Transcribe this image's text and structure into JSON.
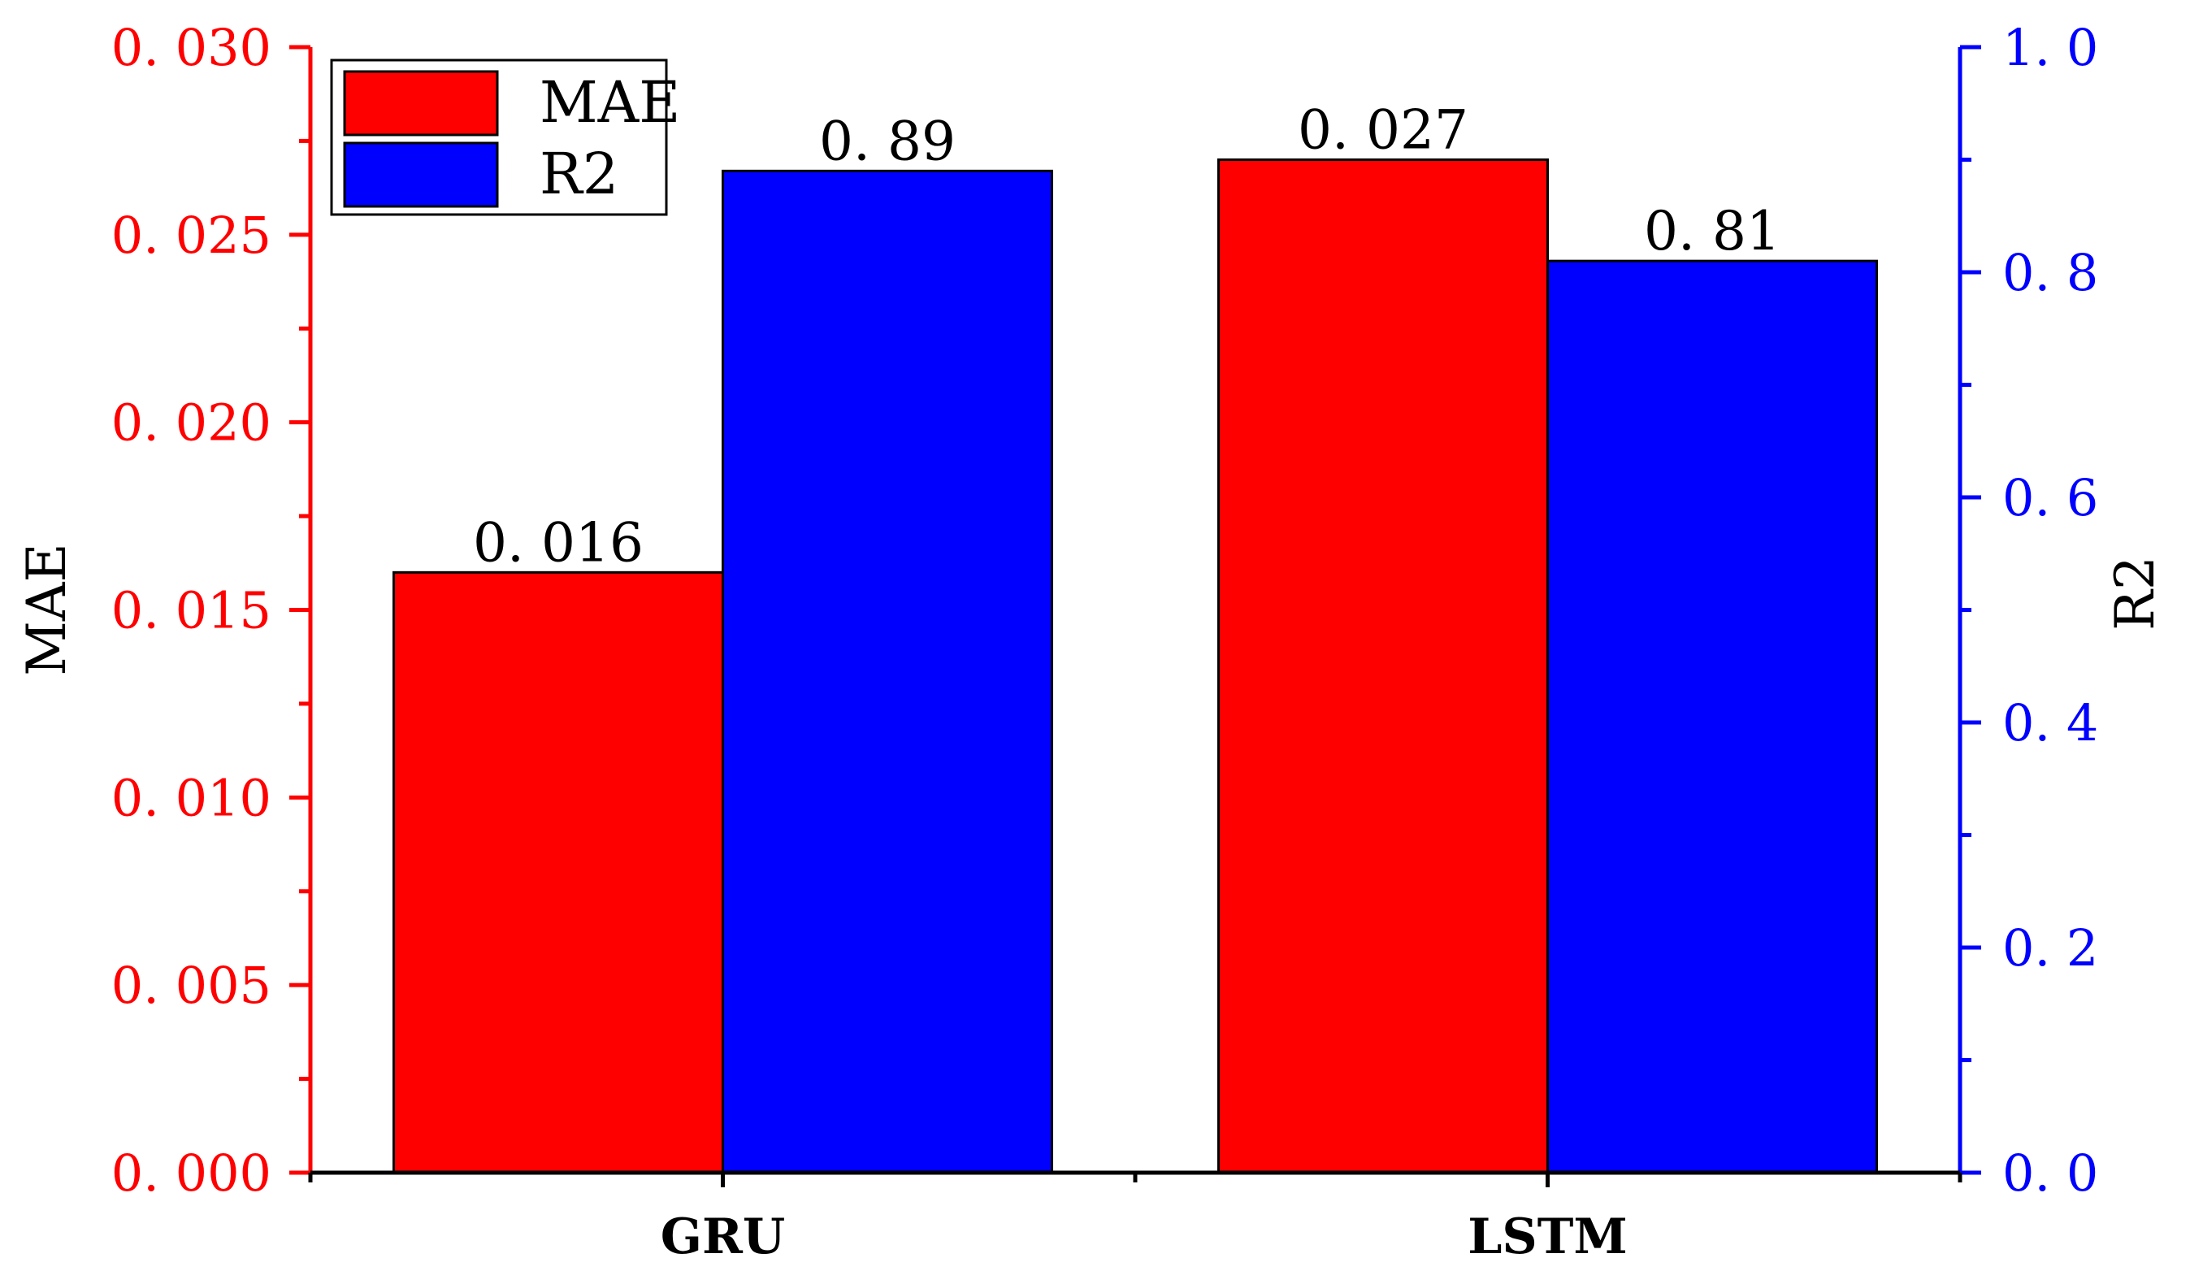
{
  "chart_data": {
    "type": "bar",
    "categories": [
      "GRU",
      "LSTM"
    ],
    "series": [
      {
        "name": "MAE",
        "axis": "left",
        "color": "#ff0000",
        "values": [
          0.016,
          0.027
        ],
        "value_labels": [
          "0. 016",
          "0. 027"
        ]
      },
      {
        "name": "R2",
        "axis": "right",
        "color": "#0000ff",
        "values": [
          0.89,
          0.81
        ],
        "value_labels": [
          "0. 89",
          "0. 81"
        ]
      }
    ],
    "y_left": {
      "label": "MAE",
      "range": [
        0,
        0.03
      ],
      "color": "#ff0000",
      "ticks": [
        0,
        0.005,
        0.01,
        0.015,
        0.02,
        0.025,
        0.03
      ],
      "tick_labels": [
        "0. 000",
        "0. 005",
        "0. 010",
        "0. 015",
        "0. 020",
        "0. 025",
        "0. 030"
      ]
    },
    "y_right": {
      "label": "R2",
      "range": [
        0,
        1.0
      ],
      "color": "#0000ff",
      "ticks": [
        0,
        0.2,
        0.4,
        0.6,
        0.8,
        1.0
      ],
      "tick_labels": [
        "0. 0",
        "0. 2",
        "0. 4",
        "0. 6",
        "0. 8",
        "1. 0"
      ]
    },
    "legend": {
      "position": "top-left",
      "entries": [
        "MAE",
        "R2"
      ]
    },
    "grid": false
  }
}
